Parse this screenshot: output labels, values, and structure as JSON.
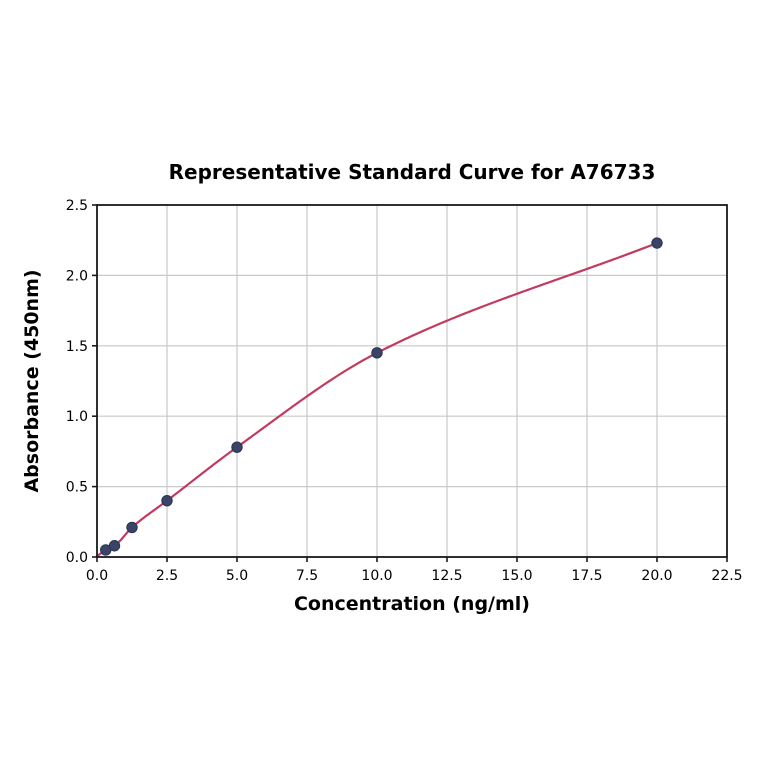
{
  "chart_data": {
    "type": "scatter",
    "title": "Representative Standard Curve for A76733",
    "xlabel": "Concentration (ng/ml)",
    "ylabel": "Absorbance (450nm)",
    "points": {
      "x": [
        0.3125,
        0.625,
        1.25,
        2.5,
        5.0,
        10.0,
        20.0
      ],
      "y": [
        0.05,
        0.08,
        0.21,
        0.4,
        0.78,
        1.45,
        2.23
      ]
    },
    "fit_curve": {
      "style": "smooth",
      "start": [
        0.0,
        0.005
      ]
    },
    "xlim": [
      0.0,
      22.5
    ],
    "ylim": [
      0.0,
      2.5
    ],
    "xticks": {
      "values": [
        0.0,
        2.5,
        5.0,
        7.5,
        10.0,
        12.5,
        15.0,
        17.5,
        20.0,
        22.5
      ],
      "labels": [
        "0.0",
        "2.5",
        "5.0",
        "7.5",
        "10.0",
        "12.5",
        "15.0",
        "17.5",
        "20.0",
        "22.5"
      ]
    },
    "yticks": {
      "values": [
        0.0,
        0.5,
        1.0,
        1.5,
        2.0,
        2.5
      ],
      "labels": [
        "0.0",
        "0.5",
        "1.0",
        "1.5",
        "2.0",
        "2.5"
      ]
    },
    "grid": true,
    "legend_position": "none",
    "colors": {
      "line": "#c23b5f",
      "marker": "#3a4468",
      "marker_edge": "#2b3450",
      "grid": "#c9c9c9",
      "spine": "#1a1a1a",
      "text": "#000000"
    }
  }
}
